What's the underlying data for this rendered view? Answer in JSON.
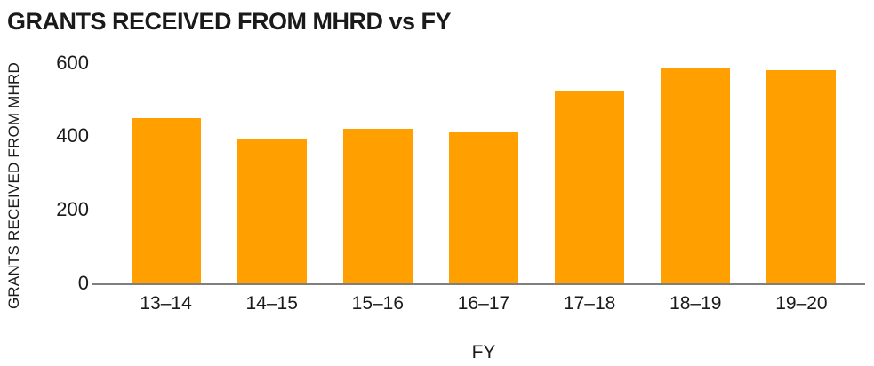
{
  "page": {
    "background": "#FFFFFF"
  },
  "chart_data": {
    "type": "bar",
    "title": "GRANTS RECEIVED FROM MHRD vs FY",
    "xlabel": "FY",
    "ylabel": "GRANTS RECEIVED FROM MHRD",
    "categories": [
      "13–14",
      "14–15",
      "15–16",
      "16–17",
      "17–18",
      "18–19",
      "19–20"
    ],
    "values": [
      450,
      395,
      420,
      410,
      525,
      585,
      580
    ],
    "ylim": [
      0,
      600
    ],
    "yticks": [
      600,
      400,
      200,
      0
    ],
    "bar_color": "#FFA000",
    "axis_line_color": "#7F7F7F",
    "text_color": "#1A1A1A",
    "grid": false,
    "legend": false
  }
}
